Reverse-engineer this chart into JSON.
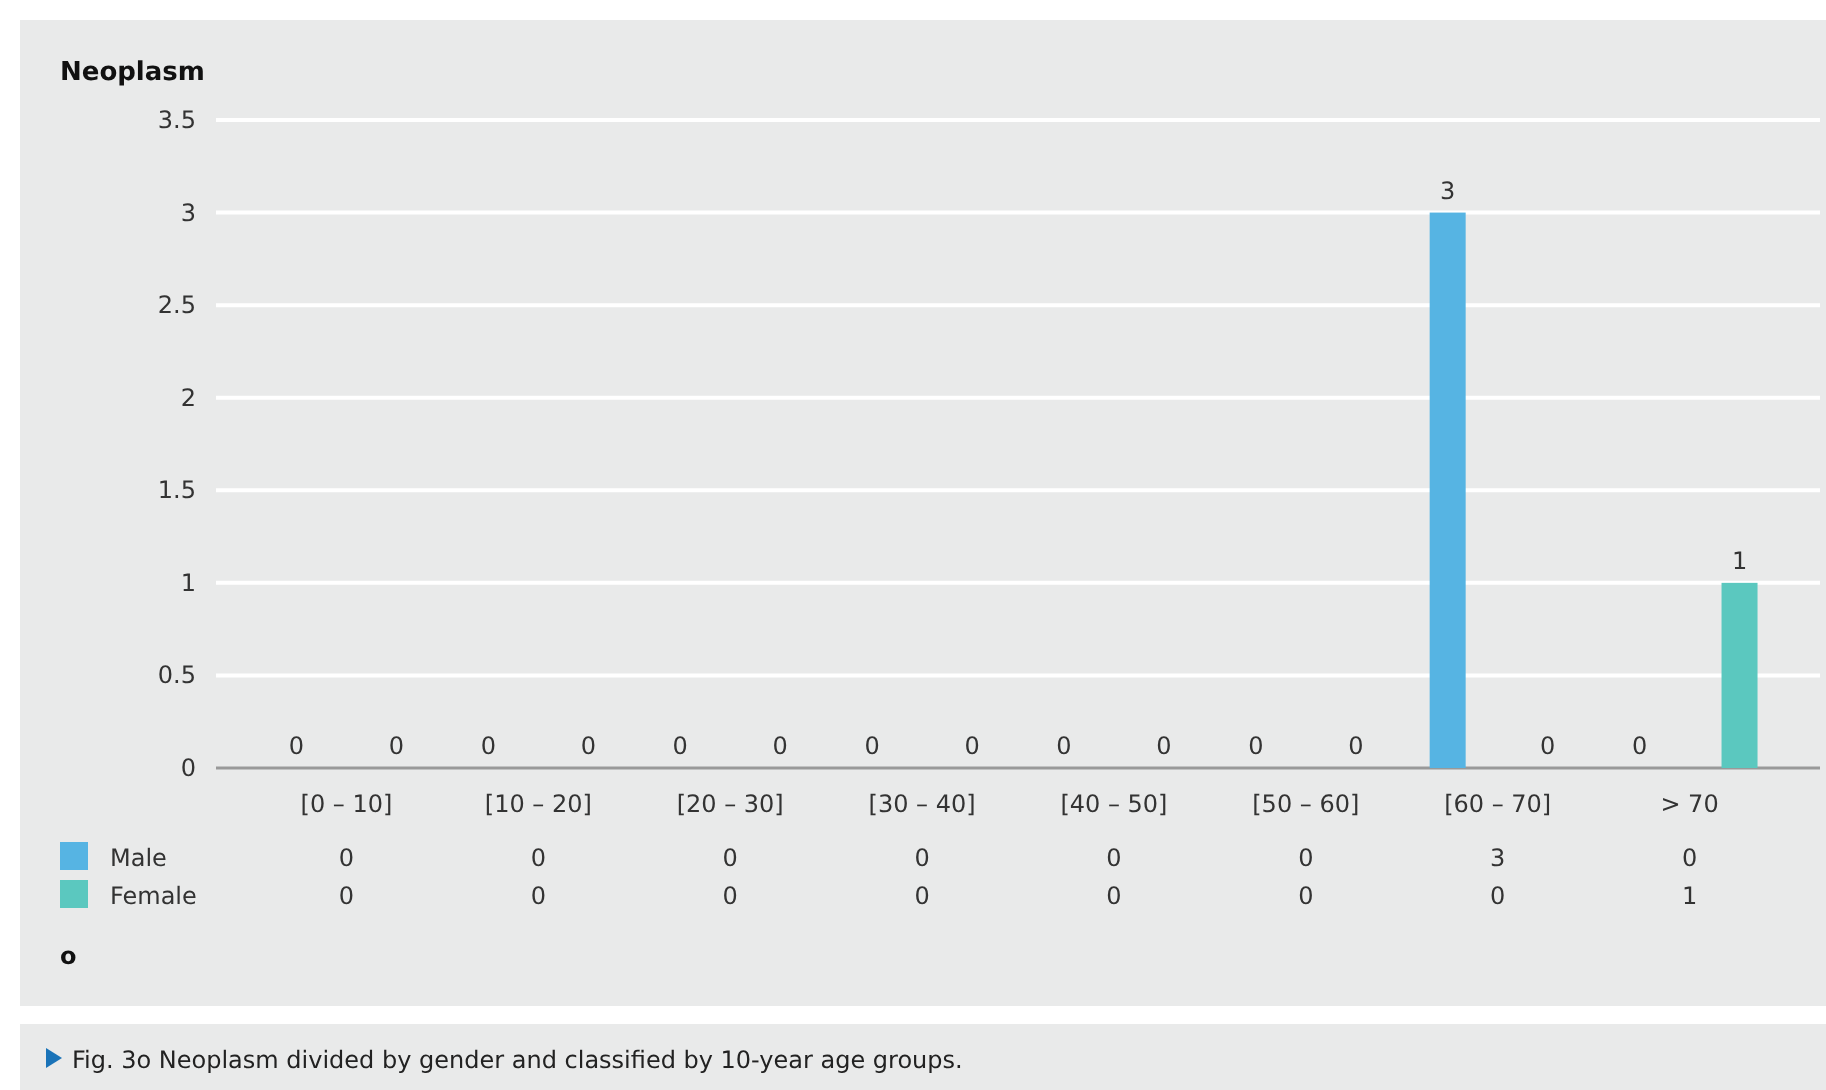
{
  "chart_data": {
    "type": "bar",
    "title": "Neoplasm",
    "categories": [
      "[0 – 10]",
      "[10 – 20]",
      "[20 – 30]",
      "[30 – 40]",
      "[40 – 50]",
      "[50 – 60]",
      "[60 – 70]",
      "> 70"
    ],
    "series": [
      {
        "name": "Male",
        "color": "#56b4e3",
        "values": [
          0,
          0,
          0,
          0,
          0,
          0,
          3,
          0
        ]
      },
      {
        "name": "Female",
        "color": "#5bc8bf",
        "values": [
          0,
          0,
          0,
          0,
          0,
          0,
          0,
          1
        ]
      }
    ],
    "ylim": [
      0,
      3.5
    ],
    "yticks": [
      0,
      0.5,
      1,
      1.5,
      2,
      2.5,
      3,
      3.5
    ],
    "grid": "y",
    "data_labels": true,
    "legend": "bottom left",
    "annotations": [
      "o",
      "Fig. 3o  Neoplasm divided by gender and classified by 10-year age groups.",
      "0",
      "0",
      "0",
      "0",
      "0",
      "0",
      "0",
      "0",
      "0",
      "0",
      "0",
      "0",
      "3",
      "0",
      "0",
      "1"
    ]
  }
}
